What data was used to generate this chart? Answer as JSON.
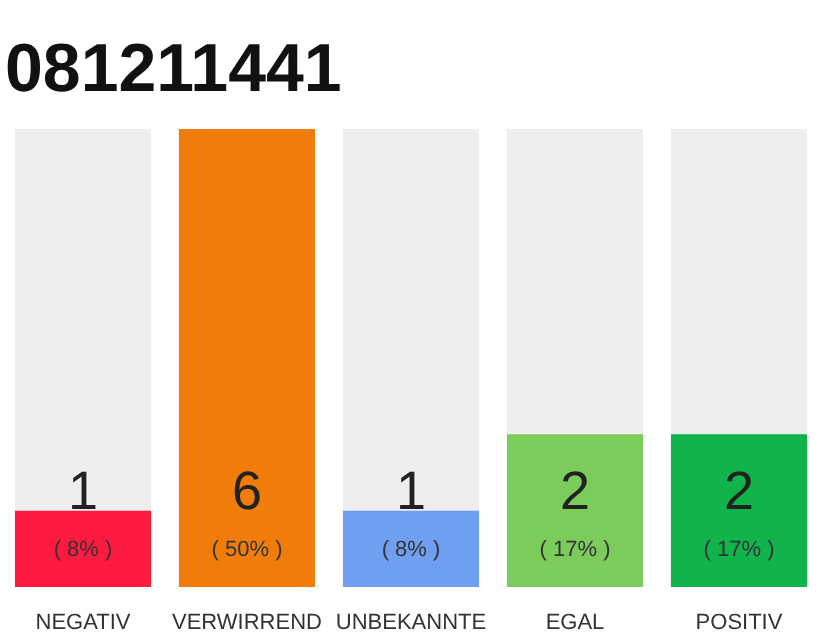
{
  "chart_data": {
    "type": "bar",
    "title": "081211441",
    "categories": [
      "NEGATIV",
      "VERWIRREND",
      "UNBEKANNTE",
      "EGAL",
      "POSITIV"
    ],
    "values": [
      1,
      6,
      1,
      2,
      2
    ],
    "colors": [
      "#ff1a40",
      "#f07d0a",
      "#6f9ff0",
      "#7ccc5c",
      "#10b44a"
    ],
    "ylim": [
      0,
      6
    ],
    "data_labels": true,
    "annotations": [
      "( 8% )",
      "( 50% )",
      "( 8% )",
      "( 17% )",
      "( 17% )"
    ]
  }
}
